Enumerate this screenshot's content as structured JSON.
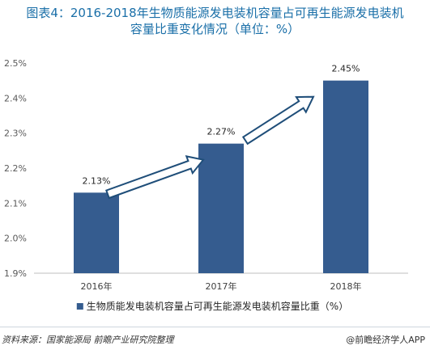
{
  "header": {
    "title_line1": "图表4：2016-2018年生物质能源发电装机容量占可再生能源发电装机",
    "title_line2": "容量比重变化情况（单位：%）"
  },
  "footer": {
    "source": "资料来源：国家能源局 前瞻产业研究院整理",
    "brand": "@前瞻经济学人APP"
  },
  "colors": {
    "bar": "#355c8f",
    "arrow_stroke": "#1f4e79",
    "axis": "#bfbfbf",
    "title": "#1a6fa8"
  },
  "chart_data": {
    "type": "bar",
    "title": "图表4：2016-2018年生物质能源发电装机容量占可再生能源发电装机容量比重变化情况（单位：%）",
    "categories": [
      "2016年",
      "2017年",
      "2018年"
    ],
    "series": [
      {
        "name": "生物质能发电装机容量占可再生能源发电装机容量比重（%）",
        "values": [
          2.13,
          2.27,
          2.45
        ]
      }
    ],
    "data_labels": [
      "2.13%",
      "2.27%",
      "2.45%"
    ],
    "ylim": [
      1.9,
      2.5
    ],
    "yticks": [
      1.9,
      2.0,
      2.1,
      2.2,
      2.3,
      2.4,
      2.5
    ],
    "ytick_labels": [
      "1.9%",
      "2.0%",
      "2.1%",
      "2.2%",
      "2.3%",
      "2.4%",
      "2.5%"
    ],
    "grid": false,
    "legend_position": "bottom",
    "xlabel": "",
    "ylabel": ""
  }
}
